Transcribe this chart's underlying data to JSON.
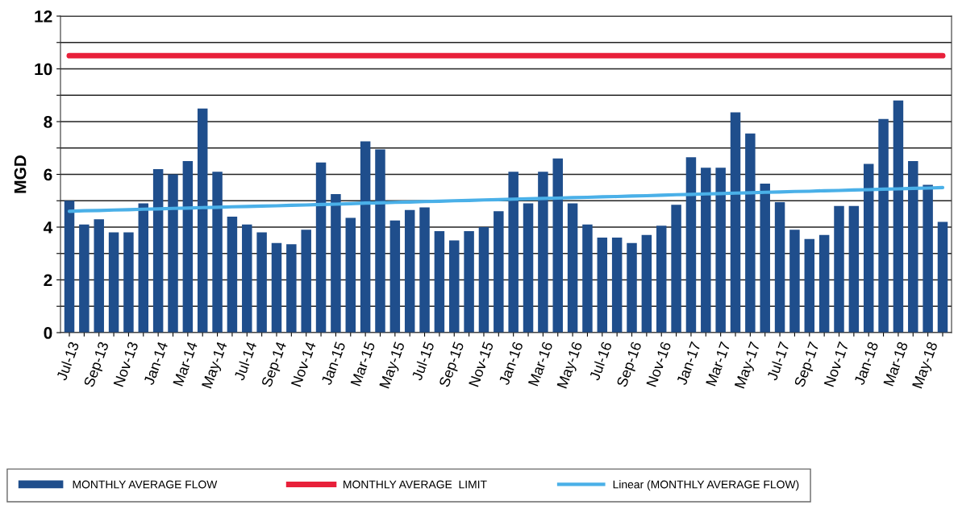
{
  "chart_data": {
    "type": "bar",
    "ylabel": "MGD",
    "categories": [
      "Jul-13",
      null,
      "Sep-13",
      null,
      "Nov-13",
      null,
      "Jan-14",
      null,
      "Mar-14",
      null,
      "May-14",
      null,
      "Jul-14",
      null,
      "Sep-14",
      null,
      "Nov-14",
      null,
      "Jan-15",
      null,
      "Mar-15",
      null,
      "May-15",
      null,
      "Jul-15",
      null,
      "Sep-15",
      null,
      "Nov-15",
      null,
      "Jan-16",
      null,
      "Mar-16",
      null,
      "May-16",
      null,
      "Jul-16",
      null,
      "Sep-16",
      null,
      "Nov-16",
      null,
      "Jan-17",
      null,
      "Mar-17",
      null,
      "May-17",
      null,
      "Jul-17",
      null,
      "Sep-17",
      null,
      "Nov-17",
      null,
      "Jan-18",
      null,
      "Mar-18",
      null,
      "May-18",
      null
    ],
    "series": [
      {
        "name": "MONTHLY AVERAGE FLOW",
        "color": "#1f4e8c",
        "values": [
          5.0,
          4.1,
          4.3,
          3.8,
          3.8,
          4.9,
          6.2,
          6.0,
          6.5,
          8.5,
          6.1,
          4.4,
          4.1,
          3.8,
          3.4,
          3.35,
          3.9,
          6.45,
          5.25,
          4.35,
          7.25,
          6.95,
          4.25,
          4.65,
          4.75,
          3.85,
          3.5,
          3.85,
          4.0,
          4.6,
          6.1,
          4.9,
          6.1,
          6.6,
          4.9,
          4.1,
          3.6,
          3.6,
          3.4,
          3.7,
          4.05,
          4.85,
          6.65,
          6.25,
          6.25,
          8.35,
          7.55,
          5.65,
          4.95,
          3.9,
          3.55,
          3.7,
          4.8,
          4.8,
          6.4,
          8.1,
          8.8,
          6.5,
          5.6,
          4.2
        ]
      },
      {
        "name": "MONTHLY AVERAGE  LIMIT",
        "type": "line",
        "color": "#e8203a",
        "values": [
          10.5,
          10.5,
          10.5,
          10.5,
          10.5,
          10.5,
          10.5,
          10.5,
          10.5,
          10.5,
          10.5,
          10.5,
          10.5,
          10.5,
          10.5,
          10.5,
          10.5,
          10.5,
          10.5,
          10.5,
          10.5,
          10.5,
          10.5,
          10.5,
          10.5,
          10.5,
          10.5,
          10.5,
          10.5,
          10.5,
          10.5,
          10.5,
          10.5,
          10.5,
          10.5,
          10.5,
          10.5,
          10.5,
          10.5,
          10.5,
          10.5,
          10.5,
          10.5,
          10.5,
          10.5,
          10.5,
          10.5,
          10.5,
          10.5,
          10.5,
          10.5,
          10.5,
          10.5,
          10.5,
          10.5,
          10.5,
          10.5,
          10.5,
          10.5,
          10.5
        ]
      },
      {
        "name": "Linear (MONTHLY AVERAGE FLOW)",
        "type": "line",
        "color": "#4ab0e8",
        "values": [
          4.6,
          4.62,
          4.63,
          4.65,
          4.66,
          4.68,
          4.69,
          4.71,
          4.72,
          4.74,
          4.75,
          4.77,
          4.78,
          4.8,
          4.81,
          4.83,
          4.84,
          4.86,
          4.87,
          4.89,
          4.91,
          4.92,
          4.94,
          4.95,
          4.97,
          4.98,
          5.0,
          5.01,
          5.03,
          5.04,
          5.06,
          5.07,
          5.09,
          5.1,
          5.12,
          5.13,
          5.15,
          5.16,
          5.18,
          5.19,
          5.21,
          5.23,
          5.24,
          5.26,
          5.27,
          5.29,
          5.3,
          5.32,
          5.33,
          5.35,
          5.36,
          5.38,
          5.39,
          5.41,
          5.42,
          5.44,
          5.45,
          5.47,
          5.48,
          5.5
        ]
      }
    ],
    "ylim": [
      0,
      12
    ],
    "yticks": [
      0,
      {
        "value": 1,
        "label": null
      },
      2,
      {
        "value": 3,
        "label": null
      },
      4,
      {
        "value": 5,
        "label": null
      },
      6,
      {
        "value": 7,
        "label": null
      },
      8,
      {
        "value": 9,
        "label": null
      },
      10,
      {
        "value": 11,
        "label": null
      },
      12
    ],
    "grid": "y",
    "legend": "bottom",
    "marker": "none",
    "line_style": "solid"
  }
}
